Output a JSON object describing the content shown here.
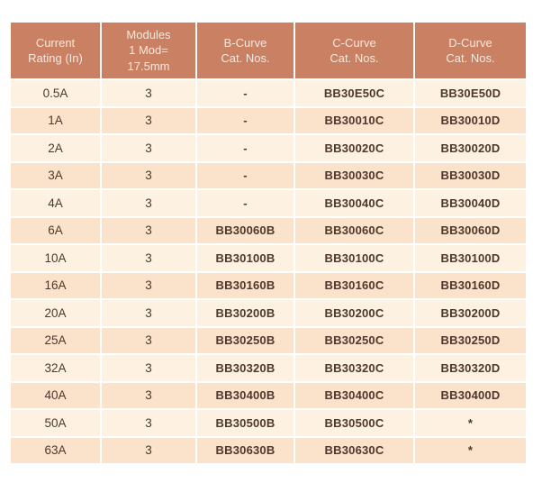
{
  "table": {
    "columns": [
      {
        "key": "current-rating",
        "lines": [
          "Current",
          "Rating (In)"
        ]
      },
      {
        "key": "modules",
        "lines": [
          "Modules",
          "1 Mod=",
          "17.5mm"
        ]
      },
      {
        "key": "b-curve",
        "lines": [
          "B-Curve",
          "Cat. Nos."
        ]
      },
      {
        "key": "c-curve",
        "lines": [
          "C-Curve",
          "Cat. Nos."
        ]
      },
      {
        "key": "d-curve",
        "lines": [
          "D-Curve",
          "Cat. Nos."
        ]
      }
    ],
    "rows": [
      [
        "0.5A",
        "3",
        "-",
        "BB30E50C",
        "BB30E50D"
      ],
      [
        "1A",
        "3",
        "-",
        "BB30010C",
        "BB30010D"
      ],
      [
        "2A",
        "3",
        "-",
        "BB30020C",
        "BB30020D"
      ],
      [
        "3A",
        "3",
        "-",
        "BB30030C",
        "BB30030D"
      ],
      [
        "4A",
        "3",
        "-",
        "BB30040C",
        "BB30040D"
      ],
      [
        "6A",
        "3",
        "BB30060B",
        "BB30060C",
        "BB30060D"
      ],
      [
        "10A",
        "3",
        "BB30100B",
        "BB30100C",
        "BB30100D"
      ],
      [
        "16A",
        "3",
        "BB30160B",
        "BB30160C",
        "BB30160D"
      ],
      [
        "20A",
        "3",
        "BB30200B",
        "BB30200C",
        "BB30200D"
      ],
      [
        "25A",
        "3",
        "BB30250B",
        "BB30250C",
        "BB30250D"
      ],
      [
        "32A",
        "3",
        "BB30320B",
        "BB30320C",
        "BB30320D"
      ],
      [
        "40A",
        "3",
        "BB30400B",
        "BB30400C",
        "BB30400D"
      ],
      [
        "50A",
        "3",
        "BB30500B",
        "BB30500C",
        "*"
      ],
      [
        "63A",
        "3",
        "BB30630B",
        "BB30630C",
        "*"
      ]
    ],
    "colors": {
      "header_bg": "#c98063",
      "header_text": "#f6e9de",
      "row_light": "#fdf2e1",
      "row_peach": "#fbe2ca",
      "cell_text": "#4e372d",
      "separator": "#ffffff"
    }
  }
}
